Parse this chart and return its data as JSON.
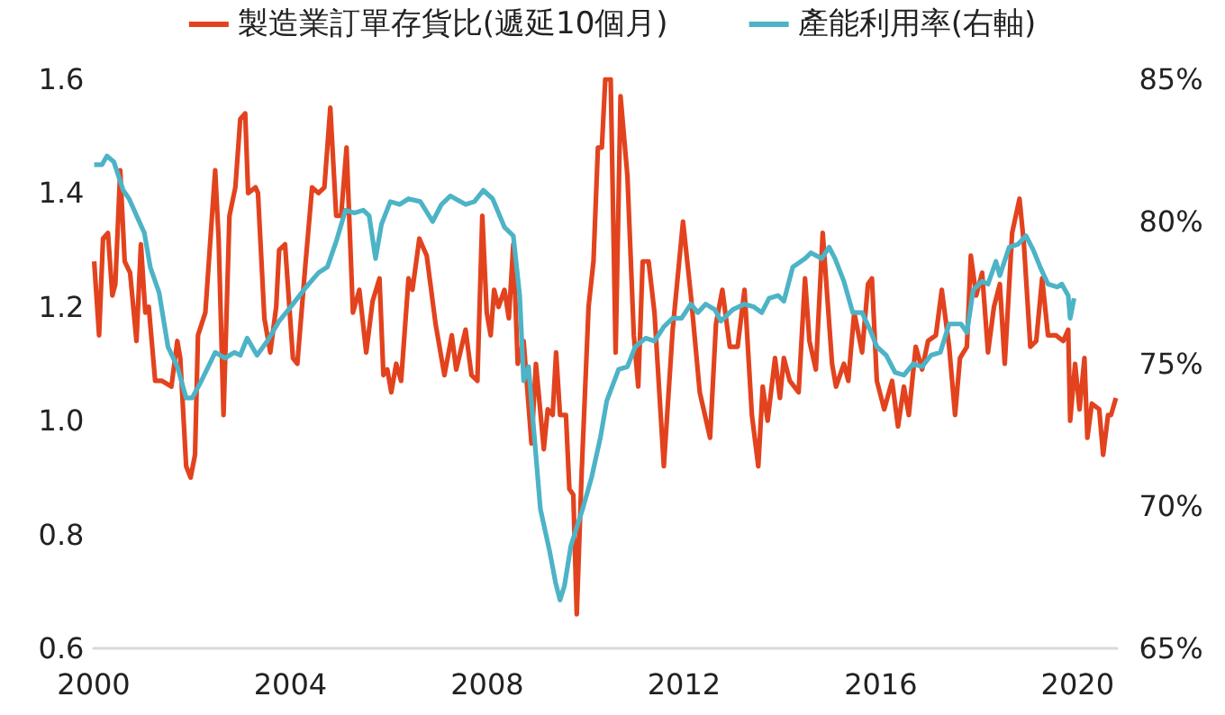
{
  "chart_data": {
    "type": "line",
    "legend": "top",
    "grid": false,
    "marker": "none",
    "line_style": "solid",
    "xlim": [
      2000,
      2020.8
    ],
    "xticks": [
      2000,
      2004,
      2008,
      2012,
      2016,
      2020
    ],
    "ylim": [
      0.6,
      1.6
    ],
    "yticks": [
      {
        "value": 0.6,
        "label": "0.6"
      },
      {
        "value": 0.8,
        "label": "0.8"
      },
      {
        "value": 1,
        "label": "1.0"
      },
      {
        "value": 1.2,
        "label": "1.2"
      },
      {
        "value": 1.4,
        "label": "1.4"
      },
      {
        "value": 1.6,
        "label": "1.6"
      }
    ],
    "y2lim": [
      65,
      85
    ],
    "y2ticks": [
      {
        "value": 65,
        "label": "65%"
      },
      {
        "value": 70,
        "label": "70%"
      },
      {
        "value": 75,
        "label": "75%"
      },
      {
        "value": 80,
        "label": "80%"
      },
      {
        "value": 85,
        "label": "85%"
      }
    ],
    "series": [
      {
        "name": "製造業訂單存貨比(遞延10個月)",
        "color": "#e2431e",
        "x": [
          2000.01,
          2000.11,
          2000.19,
          2000.29,
          2000.38,
          2000.44,
          2000.54,
          2000.63,
          2000.74,
          2000.87,
          2000.96,
          2001.05,
          2001.12,
          2001.25,
          2001.39,
          2001.58,
          2001.7,
          2001.76,
          2001.88,
          2001.97,
          2002.06,
          2002.12,
          2002.27,
          2002.47,
          2002.54,
          2002.64,
          2002.76,
          2002.88,
          2002.98,
          2003.08,
          2003.14,
          2003.29,
          2003.34,
          2003.47,
          2003.59,
          2003.71,
          2003.77,
          2003.89,
          2004.05,
          2004.14,
          2004.3,
          2004.44,
          2004.57,
          2004.69,
          2004.81,
          2004.93,
          2005.03,
          2005.14,
          2005.27,
          2005.4,
          2005.54,
          2005.67,
          2005.81,
          2005.89,
          2005.97,
          2006.05,
          2006.15,
          2006.25,
          2006.4,
          2006.48,
          2006.62,
          2006.77,
          2006.95,
          2007.13,
          2007.28,
          2007.37,
          2007.56,
          2007.68,
          2007.8,
          2007.9,
          2007.99,
          2008.07,
          2008.14,
          2008.23,
          2008.35,
          2008.44,
          2008.53,
          2008.62,
          2008.74,
          2008.9,
          2008.99,
          2009.15,
          2009.23,
          2009.33,
          2009.4,
          2009.48,
          2009.6,
          2009.67,
          2009.75,
          2009.82,
          2009.92,
          2010.06,
          2010.16,
          2010.25,
          2010.33,
          2010.4,
          2010.51,
          2010.61,
          2010.71,
          2010.85,
          2010.98,
          2011.07,
          2011.16,
          2011.28,
          2011.4,
          2011.59,
          2011.77,
          2011.98,
          2012.14,
          2012.32,
          2012.53,
          2012.65,
          2012.78,
          2012.93,
          2013.09,
          2013.23,
          2013.38,
          2013.51,
          2013.6,
          2013.7,
          2013.85,
          2013.95,
          2014.03,
          2014.15,
          2014.33,
          2014.46,
          2014.55,
          2014.68,
          2014.82,
          2015.01,
          2015.09,
          2015.25,
          2015.34,
          2015.46,
          2015.62,
          2015.74,
          2015.82,
          2015.92,
          2016.07,
          2016.23,
          2016.35,
          2016.47,
          2016.57,
          2016.71,
          2016.84,
          2016.96,
          2017.12,
          2017.24,
          2017.39,
          2017.51,
          2017.61,
          2017.75,
          2017.83,
          2017.94,
          2018.06,
          2018.18,
          2018.3,
          2018.42,
          2018.52,
          2018.67,
          2018.82,
          2018.91,
          2019.04,
          2019.16,
          2019.28,
          2019.4,
          2019.56,
          2019.71,
          2019.81,
          2019.85,
          2019.95,
          2020.04,
          2020.14,
          2020.2,
          2020.29,
          2020.44,
          2020.52,
          2020.62,
          2020.68,
          2020.78
        ],
        "values": [
          1.28,
          1.15,
          1.32,
          1.33,
          1.22,
          1.24,
          1.44,
          1.28,
          1.26,
          1.14,
          1.31,
          1.19,
          1.2,
          1.07,
          1.07,
          1.06,
          1.14,
          1.11,
          0.92,
          0.9,
          0.94,
          1.15,
          1.19,
          1.44,
          1.32,
          1.01,
          1.36,
          1.41,
          1.53,
          1.54,
          1.4,
          1.41,
          1.4,
          1.18,
          1.12,
          1.2,
          1.3,
          1.31,
          1.11,
          1.1,
          1.27,
          1.41,
          1.4,
          1.41,
          1.55,
          1.36,
          1.36,
          1.48,
          1.19,
          1.23,
          1.12,
          1.21,
          1.25,
          1.08,
          1.09,
          1.05,
          1.1,
          1.07,
          1.25,
          1.23,
          1.32,
          1.29,
          1.17,
          1.08,
          1.15,
          1.09,
          1.16,
          1.08,
          1.07,
          1.36,
          1.19,
          1.15,
          1.23,
          1.2,
          1.23,
          1.18,
          1.31,
          1.1,
          1.14,
          0.96,
          1.1,
          0.95,
          1.02,
          1.01,
          1.12,
          1.01,
          1.01,
          0.88,
          0.87,
          0.66,
          0.91,
          1.2,
          1.28,
          1.48,
          1.48,
          1.6,
          1.6,
          1.12,
          1.57,
          1.43,
          1.15,
          1.06,
          1.28,
          1.28,
          1.19,
          0.92,
          1.16,
          1.35,
          1.22,
          1.05,
          0.97,
          1.17,
          1.23,
          1.13,
          1.13,
          1.23,
          1.01,
          0.92,
          1.06,
          1.0,
          1.11,
          1.04,
          1.11,
          1.07,
          1.05,
          1.25,
          1.14,
          1.09,
          1.33,
          1.1,
          1.06,
          1.1,
          1.07,
          1.19,
          1.12,
          1.24,
          1.25,
          1.07,
          1.02,
          1.07,
          0.99,
          1.06,
          1.01,
          1.13,
          1.09,
          1.14,
          1.15,
          1.23,
          1.13,
          1.01,
          1.11,
          1.13,
          1.29,
          1.22,
          1.26,
          1.12,
          1.2,
          1.24,
          1.1,
          1.33,
          1.39,
          1.31,
          1.13,
          1.14,
          1.25,
          1.15,
          1.15,
          1.14,
          1.16,
          1.0,
          1.1,
          1.02,
          1.11,
          0.97,
          1.03,
          1.02,
          0.94,
          1.01,
          1.01,
          1.04
        ]
      },
      {
        "name": "產能利用率(右軸)",
        "color": "#4db3c6",
        "axis": "y2",
        "x": [
          2000.01,
          2000.17,
          2000.27,
          2000.41,
          2000.6,
          2000.72,
          2000.9,
          2001.03,
          2001.15,
          2001.33,
          2001.51,
          2001.7,
          2001.88,
          2002.0,
          2002.19,
          2002.47,
          2002.67,
          2002.86,
          2002.98,
          2003.12,
          2003.32,
          2003.53,
          2003.77,
          2003.96,
          2004.14,
          2004.32,
          2004.57,
          2004.75,
          2004.93,
          2005.12,
          2005.3,
          2005.48,
          2005.6,
          2005.73,
          2005.85,
          2006.03,
          2006.22,
          2006.4,
          2006.64,
          2006.89,
          2007.07,
          2007.25,
          2007.56,
          2007.74,
          2007.92,
          2008.11,
          2008.35,
          2008.53,
          2008.66,
          2008.74,
          2008.84,
          2008.96,
          2009.08,
          2009.27,
          2009.39,
          2009.48,
          2009.57,
          2009.7,
          2009.94,
          2010.12,
          2010.3,
          2010.43,
          2010.67,
          2010.85,
          2011.01,
          2011.22,
          2011.4,
          2011.59,
          2011.77,
          2011.95,
          2012.14,
          2012.28,
          2012.44,
          2012.63,
          2012.75,
          2012.99,
          2013.23,
          2013.42,
          2013.58,
          2013.73,
          2013.91,
          2014.03,
          2014.21,
          2014.46,
          2014.58,
          2014.8,
          2014.95,
          2015.07,
          2015.25,
          2015.43,
          2015.62,
          2015.78,
          2015.92,
          2016.11,
          2016.29,
          2016.47,
          2016.66,
          2016.84,
          2017.02,
          2017.21,
          2017.39,
          2017.63,
          2017.75,
          2017.88,
          2018.06,
          2018.18,
          2018.34,
          2018.42,
          2018.61,
          2018.79,
          2018.95,
          2019.1,
          2019.24,
          2019.4,
          2019.59,
          2019.68,
          2019.81,
          2019.85,
          2019.93
        ],
        "values": [
          82.0,
          82.0,
          82.3,
          82.1,
          81.1,
          80.8,
          80.1,
          79.6,
          78.4,
          77.5,
          75.6,
          74.9,
          73.8,
          73.8,
          74.4,
          75.4,
          75.2,
          75.4,
          75.3,
          75.9,
          75.3,
          75.8,
          76.5,
          76.9,
          77.3,
          77.7,
          78.2,
          78.4,
          79.3,
          80.4,
          80.3,
          80.4,
          80.2,
          78.7,
          79.9,
          80.7,
          80.6,
          80.8,
          80.7,
          80.0,
          80.6,
          80.9,
          80.6,
          80.7,
          81.1,
          80.8,
          79.8,
          79.5,
          77.4,
          74.4,
          74.9,
          72.4,
          69.9,
          68.4,
          67.3,
          66.7,
          67.2,
          68.6,
          69.9,
          71.0,
          72.4,
          73.7,
          74.8,
          74.9,
          75.6,
          75.9,
          75.8,
          76.3,
          76.6,
          76.6,
          77.1,
          76.8,
          77.1,
          76.9,
          76.5,
          76.9,
          77.1,
          77.0,
          76.8,
          77.3,
          77.4,
          77.2,
          78.4,
          78.7,
          78.9,
          78.7,
          79.1,
          78.7,
          77.9,
          76.8,
          76.8,
          76.2,
          75.6,
          75.3,
          74.7,
          74.6,
          75.0,
          74.9,
          75.3,
          75.4,
          76.4,
          76.4,
          76.1,
          77.6,
          77.9,
          77.8,
          78.6,
          78.1,
          79.1,
          79.2,
          79.5,
          79.0,
          78.4,
          77.8,
          77.7,
          77.8,
          77.4,
          76.6,
          77.3
        ]
      }
    ]
  }
}
